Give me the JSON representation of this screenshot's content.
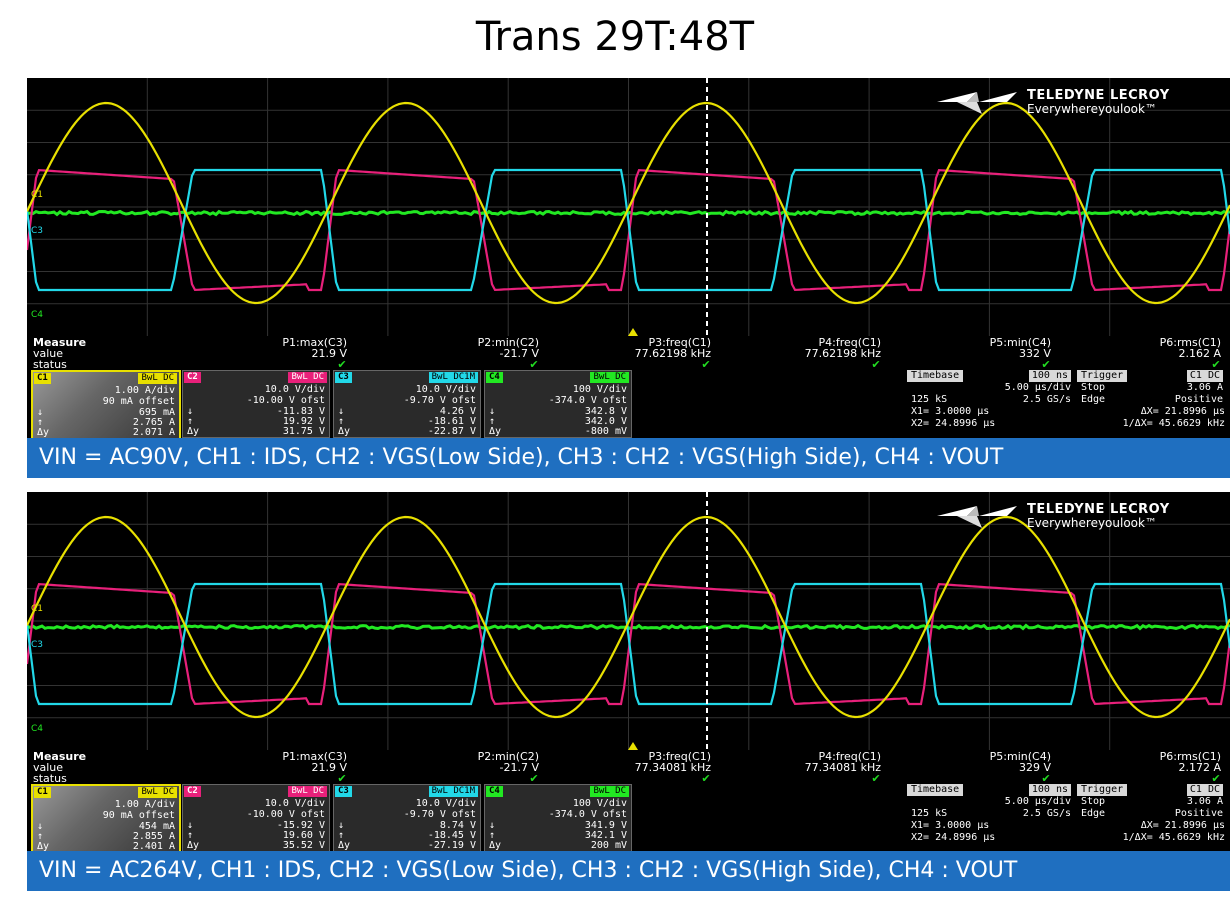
{
  "title": "Trans 29T:48T",
  "logo": {
    "brand": "TELEDYNE LECROY",
    "tagline": "Everywhereyoulook™"
  },
  "colors": {
    "ch1": "#e8e000",
    "ch2": "#e8207a",
    "ch3": "#22d8e8",
    "ch4": "#22e822",
    "caption_bg": "#1f6fc0"
  },
  "panels": [
    {
      "caption": "VIN = AC90V, CH1 : IDS, CH2 : VGS(Low Side), CH3 : CH2 : VGS(High Side), CH4 : VOUT",
      "measure": {
        "label_measure": "Measure",
        "label_value": "value",
        "label_status": "status",
        "params": [
          {
            "name": "P1:max(C3)",
            "value": "21.9 V"
          },
          {
            "name": "P2:min(C2)",
            "value": "-21.7 V"
          },
          {
            "name": "P3:freq(C1)",
            "value": "77.62198 kHz"
          },
          {
            "name": "P4:freq(C1)",
            "value": "77.62198 kHz"
          },
          {
            "name": "P5:min(C4)",
            "value": "332 V"
          },
          {
            "name": "P6:rms(C1)",
            "value": "2.162 A"
          }
        ]
      },
      "channels": [
        {
          "tag": "C1",
          "coupling": "BwL DC",
          "scale": "1.00 A/div",
          "offset": "90 mA offset",
          "down": "695 mA",
          "up": "2.765 A",
          "dy": "2.071 A"
        },
        {
          "tag": "C2",
          "coupling": "BwL DC",
          "scale": "10.0 V/div",
          "offset": "-10.00 V ofst",
          "down": "-11.83 V",
          "up": "19.92 V",
          "dy": "31.75 V"
        },
        {
          "tag": "C3",
          "coupling": "BwL DC1M",
          "scale": "10.0 V/div",
          "offset": "-9.70 V ofst",
          "down": "4.26 V",
          "up": "-18.61 V",
          "dy": "-22.87 V"
        },
        {
          "tag": "C4",
          "coupling": "BwL DC",
          "scale": "100 V/div",
          "offset": "-374.0 V ofst",
          "down": "342.8 V",
          "up": "342.0 V",
          "dy": "-800 mV"
        }
      ],
      "timebase": {
        "label": "Timebase",
        "value": "100 ns",
        "perdiv": "5.00 µs/div",
        "samples": "125 kS",
        "rate": "2.5 GS/s",
        "x1": "X1=    3.0000 µs",
        "x2": "X2=  24.8996 µs",
        "dx": "ΔX=    21.8996 µs",
        "invdx": "1/ΔX=  45.6629 kHz"
      },
      "trigger": {
        "label": "Trigger",
        "ch": "C1 DC",
        "mode": "Stop",
        "level": "3.06 A",
        "type": "Edge",
        "slope": "Positive"
      },
      "trace_labels": {
        "c1": "C1",
        "c3": "C3",
        "c4": "C4"
      },
      "waveform": {
        "frequency_khz": 77.62198,
        "ch2_high": 19.92,
        "ch2_low": -11.83
      }
    },
    {
      "caption": "VIN = AC264V, CH1 : IDS, CH2 : VGS(Low Side), CH3 : CH2 : VGS(High Side), CH4 : VOUT",
      "measure": {
        "label_measure": "Measure",
        "label_value": "value",
        "label_status": "status",
        "params": [
          {
            "name": "P1:max(C3)",
            "value": "21.9 V"
          },
          {
            "name": "P2:min(C2)",
            "value": "-21.7 V"
          },
          {
            "name": "P3:freq(C1)",
            "value": "77.34081 kHz"
          },
          {
            "name": "P4:freq(C1)",
            "value": "77.34081 kHz"
          },
          {
            "name": "P5:min(C4)",
            "value": "329 V"
          },
          {
            "name": "P6:rms(C1)",
            "value": "2.172 A"
          }
        ]
      },
      "channels": [
        {
          "tag": "C1",
          "coupling": "BwL DC",
          "scale": "1.00 A/div",
          "offset": "90 mA offset",
          "down": "454 mA",
          "up": "2.855 A",
          "dy": "2.401 A"
        },
        {
          "tag": "C2",
          "coupling": "BwL DC",
          "scale": "10.0 V/div",
          "offset": "-10.00 V ofst",
          "down": "-15.92 V",
          "up": "19.60 V",
          "dy": "35.52 V"
        },
        {
          "tag": "C3",
          "coupling": "BwL DC1M",
          "scale": "10.0 V/div",
          "offset": "-9.70 V ofst",
          "down": "8.74 V",
          "up": "-18.45 V",
          "dy": "-27.19 V"
        },
        {
          "tag": "C4",
          "coupling": "BwL DC",
          "scale": "100 V/div",
          "offset": "-374.0 V ofst",
          "down": "341.9 V",
          "up": "342.1 V",
          "dy": "200 mV"
        }
      ],
      "timebase": {
        "label": "Timebase",
        "value": "100 ns",
        "perdiv": "5.00 µs/div",
        "samples": "125 kS",
        "rate": "2.5 GS/s",
        "x1": "X1=    3.0000 µs",
        "x2": "X2=  24.8996 µs",
        "dx": "ΔX=    21.8996 µs",
        "invdx": "1/ΔX=  45.6629 kHz"
      },
      "trigger": {
        "label": "Trigger",
        "ch": "C1 DC",
        "mode": "Stop",
        "level": "3.06 A",
        "type": "Edge",
        "slope": "Positive"
      },
      "trace_labels": {
        "c1": "C1",
        "c3": "C3",
        "c4": "C4"
      },
      "waveform": {
        "frequency_khz": 77.34081,
        "ch2_high": 19.6,
        "ch2_low": -15.92
      }
    }
  ],
  "chart_data": [
    {
      "type": "line",
      "title": "",
      "xlabel": "",
      "ylabel": "",
      "x_unit_per_div": "5.00 µs/div",
      "series": [
        {
          "name": "C1",
          "scale": "1.00 A/div",
          "frequency_khz": 77.62198,
          "rms": "2.162 A"
        },
        {
          "name": "C2",
          "scale": "10.0 V/div",
          "min": "-21.7 V"
        },
        {
          "name": "C3",
          "scale": "10.0 V/div",
          "max": "21.9 V"
        },
        {
          "name": "C4",
          "scale": "100 V/div",
          "min": "332 V"
        }
      ]
    },
    {
      "type": "line",
      "title": "",
      "xlabel": "",
      "ylabel": "",
      "x_unit_per_div": "5.00 µs/div",
      "series": [
        {
          "name": "C1",
          "scale": "1.00 A/div",
          "frequency_khz": 77.34081,
          "rms": "2.172 A"
        },
        {
          "name": "C2",
          "scale": "10.0 V/div",
          "min": "-21.7 V"
        },
        {
          "name": "C3",
          "scale": "10.0 V/div",
          "max": "21.9 V"
        },
        {
          "name": "C4",
          "scale": "100 V/div",
          "min": "329 V"
        }
      ]
    }
  ]
}
